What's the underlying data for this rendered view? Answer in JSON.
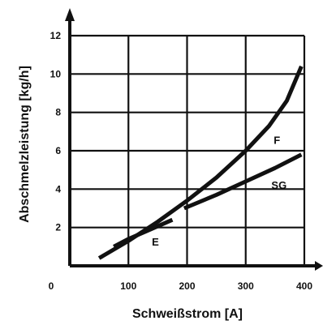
{
  "chart_data": {
    "type": "line",
    "xlabel": "Schweißstrom [A]",
    "ylabel": "Abschmelzleistung [kg/h]",
    "xlim": [
      0,
      400
    ],
    "ylim": [
      0,
      12
    ],
    "x_ticks": [
      "0",
      "100",
      "200",
      "300",
      "400"
    ],
    "y_ticks": [
      "2",
      "4",
      "6",
      "8",
      "10",
      "12"
    ],
    "grid": true,
    "series": [
      {
        "name": "F",
        "x": [
          50,
          100,
          150,
          200,
          250,
          300,
          340,
          370,
          395
        ],
        "y": [
          0.4,
          1.3,
          2.3,
          3.4,
          4.6,
          6.0,
          7.3,
          8.6,
          10.4
        ]
      },
      {
        "name": "SG",
        "x": [
          195,
          250,
          300,
          350,
          395
        ],
        "y": [
          3.0,
          3.7,
          4.4,
          5.1,
          5.8
        ]
      },
      {
        "name": "E",
        "x": [
          75,
          100,
          130,
          160,
          175
        ],
        "y": [
          1.0,
          1.4,
          1.8,
          2.2,
          2.4
        ]
      }
    ]
  }
}
